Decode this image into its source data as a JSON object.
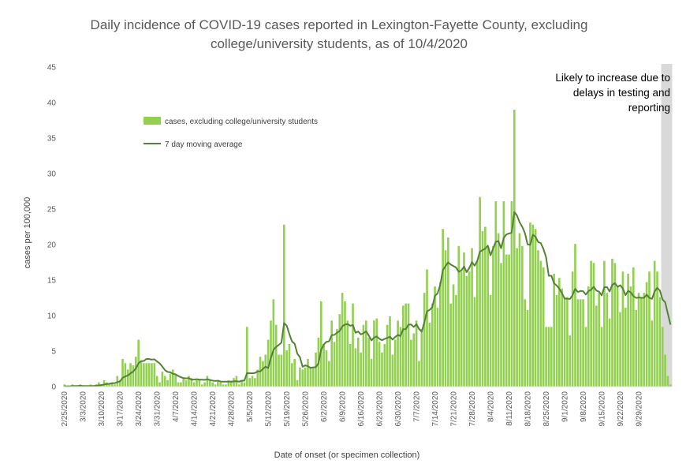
{
  "chart_data": {
    "type": "bar",
    "title_line1": "Daily incidence of COVID-19 cases reported in Lexington-Fayette County, excluding",
    "title_line2": "college/university students, as of 10/4/2020",
    "xlabel": "Date of onset (or specimen collection)",
    "ylabel": "cases per 100,000",
    "ylim": [
      0,
      45
    ],
    "yticks": [
      0,
      5,
      10,
      15,
      20,
      25,
      30,
      35,
      40,
      45
    ],
    "x_start": "2020-02-25",
    "x_tick_labels": [
      "2/25/2020",
      "3/3/2020",
      "3/10/2020",
      "3/17/2020",
      "3/24/2020",
      "3/31/2020",
      "4/7/2020",
      "4/14/2020",
      "4/21/2020",
      "4/28/2020",
      "5/5/2020",
      "5/12/2020",
      "5/19/2020",
      "5/26/2020",
      "6/2/2020",
      "6/9/2020",
      "6/16/2020",
      "6/23/2020",
      "6/30/2020",
      "7/7/2020",
      "7/14/2020",
      "7/21/2020",
      "7/28/2020",
      "8/4/2020",
      "8/11/2020",
      "8/18/2020",
      "8/25/2020",
      "9/1/2020",
      "9/8/2020",
      "9/15/2020",
      "9/22/2020",
      "9/29/2020"
    ],
    "grid": false,
    "legend_position": "upper-left",
    "series": [
      {
        "name": "cases, excluding college/university students",
        "kind": "bar",
        "color": "#92d050",
        "values": [
          0.3,
          0,
          0,
          0.3,
          0,
          0,
          0.3,
          0,
          0,
          0,
          0.3,
          0,
          0.3,
          0.6,
          0.3,
          0.9,
          0.6,
          0.3,
          0.6,
          0.3,
          1.5,
          0.9,
          3.9,
          3.3,
          2.4,
          3.3,
          3,
          4.2,
          6.6,
          3.6,
          3.3,
          3.3,
          3.3,
          3.3,
          3.3,
          1.5,
          0.6,
          2.1,
          1.5,
          0.9,
          1.8,
          2.4,
          1.8,
          0.6,
          0.6,
          1.2,
          0.9,
          1.5,
          1.2,
          0.6,
          0.9,
          0.9,
          0.3,
          0.6,
          1.5,
          0.9,
          0.6,
          0.3,
          0.9,
          0.6,
          0.3,
          0.3,
          0.9,
          0.6,
          1.2,
          1.5,
          0.3,
          0.9,
          0.6,
          8.4,
          1.2,
          1.5,
          1.2,
          2.4,
          4.2,
          3.6,
          4.5,
          6.6,
          9.3,
          12.3,
          8.7,
          4.5,
          4.5,
          22.8,
          5.1,
          6,
          3.3,
          3.9,
          0.9,
          2.7,
          2.4,
          2.7,
          3.9,
          2.7,
          2.7,
          4.8,
          6.9,
          12,
          6,
          5.1,
          3.6,
          9.3,
          6.3,
          8.1,
          10.2,
          13.2,
          12,
          9.3,
          6,
          11.7,
          5.4,
          6.9,
          4.8,
          8.7,
          9.3,
          6.9,
          3.9,
          9.3,
          9.6,
          6.3,
          4.8,
          6,
          8.7,
          9.9,
          4.5,
          6.6,
          9.3,
          8.4,
          11.4,
          11.7,
          11.7,
          6.6,
          7.5,
          9.3,
          3.6,
          8.1,
          13.2,
          16.5,
          9,
          11.7,
          14.1,
          11.1,
          14.7,
          22.2,
          19.2,
          21,
          11.7,
          14.4,
          12.9,
          19.8,
          16.2,
          18.9,
          15.6,
          16.2,
          19.5,
          12.6,
          17.7,
          26.7,
          21.9,
          22.5,
          19.5,
          12.9,
          19.8,
          26.1,
          21.6,
          17.4,
          26.1,
          18.6,
          18.6,
          26.1,
          39,
          19.5,
          21.6,
          19.8,
          12.3,
          10.8,
          23.1,
          22.8,
          22.2,
          19.2,
          17.7,
          16.8,
          8.4,
          8.4,
          8.4,
          15.9,
          12.9,
          15.3,
          13.8,
          12.6,
          12.6,
          7.2,
          16.2,
          20.1,
          12.3,
          12.3,
          12.3,
          8.4,
          14.1,
          17.7,
          17.4,
          11.4,
          13.2,
          8.4,
          17.7,
          13.2,
          9.6,
          18,
          17.4,
          14.1,
          10.5,
          16.2,
          11.1,
          15.9,
          14.1,
          16.8,
          10.8,
          13.2,
          12.6,
          13.2,
          14.7,
          16.2,
          9.3,
          17.7,
          16.2,
          12.6,
          8.4,
          4.5,
          1.5,
          0.3
        ]
      },
      {
        "name": "7 day moving average",
        "kind": "line",
        "color": "#548235",
        "values": [
          0.04,
          0.04,
          0.04,
          0.09,
          0.09,
          0.09,
          0.13,
          0.09,
          0.09,
          0.09,
          0.09,
          0.09,
          0.13,
          0.17,
          0.21,
          0.3,
          0.36,
          0.39,
          0.47,
          0.47,
          0.64,
          0.73,
          1.24,
          1.44,
          1.56,
          1.87,
          2.13,
          2.55,
          3.28,
          3.6,
          3.6,
          3.9,
          3.87,
          3.81,
          3.84,
          3.54,
          3.27,
          2.82,
          2.31,
          2.07,
          2.01,
          1.8,
          1.72,
          1.5,
          1.32,
          1.2,
          1.16,
          1.2,
          0.99,
          0.99,
          1.04,
          0.97,
          0.97,
          0.94,
          1.03,
          0.94,
          0.84,
          0.79,
          0.84,
          0.71,
          0.69,
          0.69,
          0.69,
          0.69,
          0.73,
          0.77,
          0.69,
          0.84,
          0.84,
          1.89,
          1.88,
          1.88,
          1.92,
          2.14,
          2.14,
          2.48,
          2.81,
          2.61,
          4.03,
          5.17,
          5.59,
          5.87,
          6.19,
          8.93,
          8.59,
          7.39,
          6.34,
          6.04,
          4.64,
          4.14,
          2.79,
          2.99,
          2.87,
          2.64,
          2.71,
          2.74,
          3.28,
          5.18,
          5.92,
          6.29,
          6.38,
          7.25,
          7.28,
          7.58,
          7.83,
          8.48,
          8.74,
          8.81,
          8.57,
          8.67,
          7.59,
          7.76,
          7.35,
          7.52,
          7.78,
          7.2,
          6.5,
          6.89,
          7.07,
          6.74,
          6.53,
          6.72,
          6.86,
          7.02,
          6.62,
          6.99,
          7.27,
          7.12,
          8.08,
          8.08,
          8.74,
          8.74,
          8.4,
          8.79,
          8.11,
          7.75,
          9.02,
          10.6,
          10.8,
          11.18,
          12.78,
          13.12,
          14.31,
          16.41,
          16.97,
          17.49,
          17.18,
          16.97,
          16.76,
          16.16,
          16.37,
          16.9,
          16.12,
          16.73,
          17.52,
          17.02,
          17.7,
          19.01,
          19.22,
          19.42,
          19.85,
          18.49,
          19.45,
          20.42,
          20.49,
          19.48,
          20.94,
          21.42,
          21.56,
          21.68,
          24.59,
          24.1,
          23.14,
          22.5,
          21.61,
          20.04,
          19.96,
          21.38,
          21.1,
          20.35,
          20.21,
          19.37,
          18.21,
          15.61,
          15.61,
          14.55,
          14.23,
          13.79,
          13.14,
          12.39,
          12.37,
          12.34,
          12.87,
          13.77,
          13.32,
          13.47,
          13.43,
          12.96,
          13.44,
          13.64,
          14.06,
          13.52,
          13.37,
          12.84,
          13.99,
          14.01,
          13.39,
          14.32,
          14.57,
          14.06,
          14.27,
          13.82,
          12.88,
          13.48,
          13.27,
          12.74,
          12.49,
          12.55,
          12.5,
          12.5,
          12.95,
          12.5,
          12.35,
          13.39,
          13.9,
          13.52,
          12.27,
          11.87,
          10.28,
          8.73
        ]
      }
    ],
    "shaded_region": {
      "from_index": 226,
      "to_index": 235,
      "color": "#d9d9d9",
      "annotation_lines": [
        "Likely to increase due to",
        "delays in testing and",
        "reporting"
      ]
    }
  }
}
